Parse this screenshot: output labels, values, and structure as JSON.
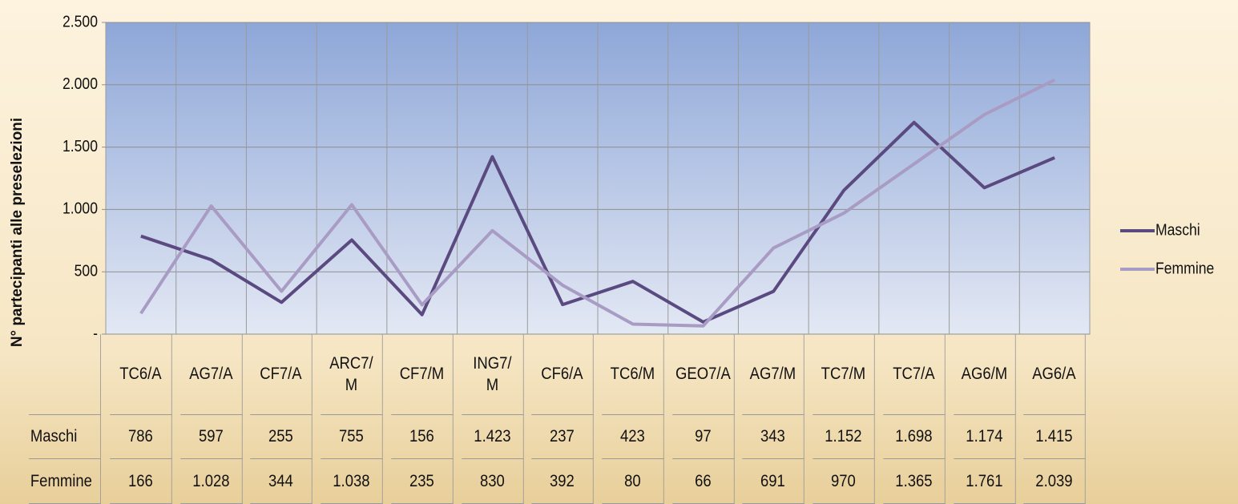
{
  "chart_data": {
    "type": "line",
    "y_axis_label": "N° partecipanti alle preselezioni",
    "categories": [
      "TC6/A",
      "AG7/A",
      "CF7/A",
      "ARC7/\nM",
      "CF7/M",
      "ING7/\nM",
      "CF6/A",
      "TC6/M",
      "GEO7/A",
      "AG7/M",
      "TC7/M",
      "TC7/A",
      "AG6/M",
      "AG6/A"
    ],
    "series": [
      {
        "name": "Maschi",
        "color": "#5a4a80",
        "values": [
          786,
          597,
          255,
          755,
          156,
          1423,
          237,
          423,
          97,
          343,
          1152,
          1698,
          1174,
          1415
        ],
        "value_labels": [
          "786",
          "597",
          "255",
          "755",
          "156",
          "1.423",
          "237",
          "423",
          "97",
          "343",
          "1.152",
          "1.698",
          "1.174",
          "1.415"
        ]
      },
      {
        "name": "Femmine",
        "color": "#a99cc4",
        "values": [
          166,
          1028,
          344,
          1038,
          235,
          830,
          392,
          80,
          66,
          691,
          970,
          1365,
          1761,
          2039
        ],
        "value_labels": [
          "166",
          "1.028",
          "344",
          "1.038",
          "235",
          "830",
          "392",
          "80",
          "66",
          "691",
          "970",
          "1.365",
          "1.761",
          "2.039"
        ]
      }
    ],
    "ylim": [
      0,
      2500
    ],
    "yticks": [
      {
        "value": 0,
        "label": "-"
      },
      500,
      {
        "value": 1000,
        "label": "1.000"
      },
      {
        "value": 1500,
        "label": "1.500"
      },
      {
        "value": 2000,
        "label": "2.000"
      },
      {
        "value": 2500,
        "label": "2.500"
      }
    ],
    "grid": true,
    "legend": "right"
  }
}
